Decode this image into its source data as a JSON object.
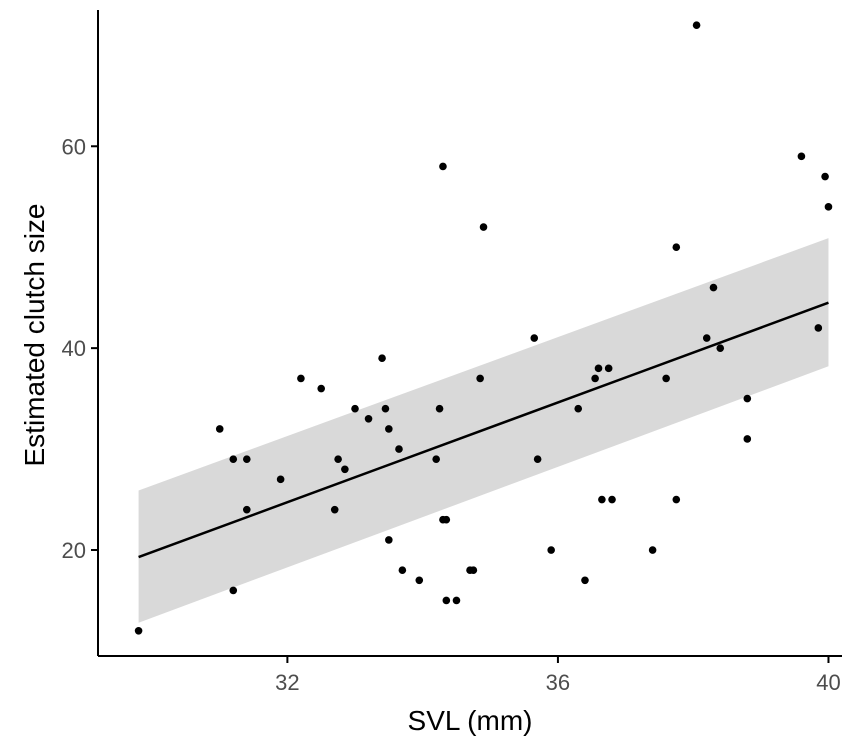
{
  "chart_data": {
    "type": "scatter",
    "title": "",
    "xlabel": "SVL (mm)",
    "ylabel": "Estimated clutch size",
    "xlim": [
      29.2,
      40.2
    ],
    "ylim": [
      9.5,
      73.5
    ],
    "xticks": [
      32,
      36,
      40
    ],
    "yticks": [
      20,
      40,
      60
    ],
    "x_tick_labels": [
      "32",
      "36",
      "40"
    ],
    "y_tick_labels": [
      "20",
      "40",
      "60"
    ],
    "grid": false,
    "legend": "none",
    "points": [
      [
        29.8,
        12
      ],
      [
        31.0,
        32
      ],
      [
        31.2,
        29
      ],
      [
        31.2,
        16
      ],
      [
        31.4,
        29
      ],
      [
        31.4,
        24
      ],
      [
        31.9,
        27
      ],
      [
        32.2,
        37
      ],
      [
        32.5,
        36
      ],
      [
        32.7,
        24
      ],
      [
        32.75,
        29
      ],
      [
        32.85,
        28
      ],
      [
        33.0,
        34
      ],
      [
        33.2,
        33
      ],
      [
        33.4,
        39
      ],
      [
        33.45,
        34
      ],
      [
        33.5,
        32
      ],
      [
        33.5,
        21
      ],
      [
        33.65,
        30
      ],
      [
        33.7,
        18
      ],
      [
        33.95,
        17
      ],
      [
        34.2,
        29
      ],
      [
        34.25,
        34
      ],
      [
        34.3,
        23
      ],
      [
        34.35,
        23
      ],
      [
        34.3,
        58
      ],
      [
        34.35,
        15
      ],
      [
        34.5,
        15
      ],
      [
        34.7,
        18
      ],
      [
        34.75,
        18
      ],
      [
        34.85,
        37
      ],
      [
        34.9,
        52
      ],
      [
        35.65,
        41
      ],
      [
        35.7,
        29
      ],
      [
        35.9,
        20
      ],
      [
        36.3,
        34
      ],
      [
        36.4,
        17
      ],
      [
        36.55,
        37
      ],
      [
        36.6,
        38
      ],
      [
        36.65,
        25
      ],
      [
        36.75,
        38
      ],
      [
        36.8,
        25
      ],
      [
        37.4,
        20
      ],
      [
        37.6,
        37
      ],
      [
        37.75,
        50
      ],
      [
        37.75,
        25
      ],
      [
        38.05,
        72
      ],
      [
        38.2,
        41
      ],
      [
        38.3,
        46
      ],
      [
        38.4,
        40
      ],
      [
        38.8,
        35
      ],
      [
        38.8,
        31
      ],
      [
        39.6,
        59
      ],
      [
        39.85,
        42
      ],
      [
        39.95,
        57
      ],
      [
        40.0,
        54
      ]
    ],
    "fit": {
      "x": [
        29.8,
        40.0
      ],
      "y": [
        19.3,
        44.5
      ],
      "ci_lower": [
        12.8,
        38.2
      ],
      "ci_upper": [
        25.9,
        50.9
      ]
    },
    "colors": {
      "points": "#000000",
      "fit_line": "#000000",
      "ci_band": "#d9d9d9",
      "axis": "#000000",
      "tick_label": "#4d4d4d"
    }
  }
}
